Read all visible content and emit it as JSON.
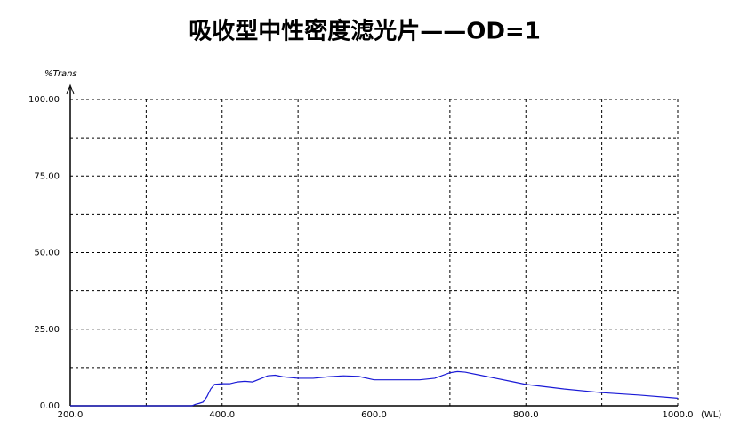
{
  "chart_data": {
    "type": "line",
    "title": "吸收型中性密度滤光片——OD=1",
    "y_label": "%Trans",
    "x_label": "(WL)",
    "x": [
      200,
      360,
      365,
      370,
      375,
      380,
      385,
      390,
      400,
      410,
      420,
      430,
      440,
      450,
      460,
      470,
      480,
      500,
      520,
      540,
      560,
      580,
      600,
      620,
      640,
      660,
      680,
      700,
      710,
      720,
      740,
      760,
      780,
      800,
      850,
      900,
      950,
      1000
    ],
    "series": [
      {
        "name": "%Trans",
        "color": "#1a1ad6",
        "values": [
          0,
          0,
          0.5,
          0.8,
          1.2,
          3,
          5.5,
          7,
          7.2,
          7.2,
          7.8,
          8,
          7.8,
          8.8,
          9.8,
          10,
          9.5,
          9,
          9,
          9.5,
          9.8,
          9.6,
          8.5,
          8.5,
          8.5,
          8.5,
          9,
          10.8,
          11.2,
          11,
          10,
          9,
          8,
          7,
          5.5,
          4.3,
          3.5,
          2.5
        ]
      }
    ],
    "xlim": [
      200,
      1000
    ],
    "xticks": [
      {
        "value": 200,
        "label": "200.0"
      },
      {
        "value": 300,
        "label": null
      },
      {
        "value": 400,
        "label": "400.0"
      },
      {
        "value": 500,
        "label": null
      },
      {
        "value": 600,
        "label": "600.0"
      },
      {
        "value": 700,
        "label": null
      },
      {
        "value": 800,
        "label": "800.0"
      },
      {
        "value": 900,
        "label": null
      },
      {
        "value": 1000,
        "label": "1000.0"
      }
    ],
    "ylim": [
      0,
      100
    ],
    "yticks": [
      {
        "value": 0,
        "label": "0.00"
      },
      {
        "value": 12.5,
        "label": null
      },
      {
        "value": 25,
        "label": "25.00"
      },
      {
        "value": 37.5,
        "label": null
      },
      {
        "value": 50,
        "label": "50.00"
      },
      {
        "value": 62.5,
        "label": null
      },
      {
        "value": 75,
        "label": "75.00"
      },
      {
        "value": 87.5,
        "label": null
      },
      {
        "value": 100,
        "label": "100.00"
      }
    ],
    "grid": true
  }
}
